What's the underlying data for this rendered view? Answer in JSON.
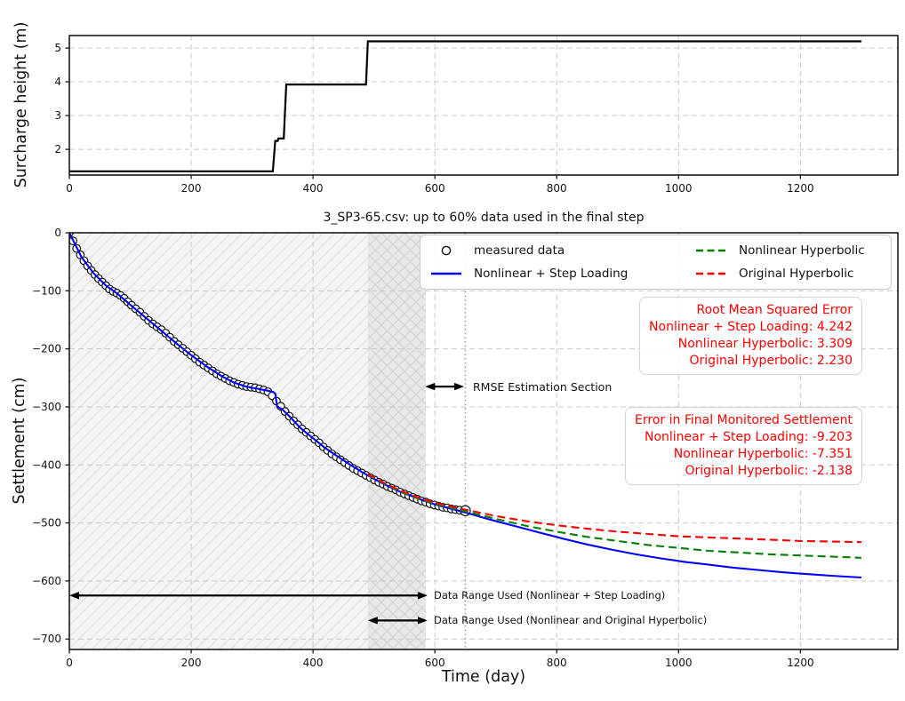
{
  "chart_data": [
    {
      "type": "line",
      "name": "surcharge-height-plot",
      "ylabel": "Surcharge height (m)",
      "xlim": [
        0,
        1360
      ],
      "ylim": [
        1.24,
        5.37
      ],
      "xticks": [
        0,
        200,
        400,
        600,
        800,
        1000,
        1200
      ],
      "xtick_labels": [
        "0",
        "200",
        "400",
        "600",
        "800",
        "1000",
        "1200"
      ],
      "yticks": [
        2,
        3,
        4,
        5
      ],
      "ytick_labels": [
        "2",
        "3",
        "4",
        "5"
      ],
      "grid": true,
      "series": [
        {
          "name": "surcharge height",
          "type": "line",
          "style": "solid",
          "color": "#000000",
          "points": [
            [
              0,
              1.35
            ],
            [
              334,
              1.35
            ],
            [
              338,
              2.25
            ],
            [
              342,
              2.25
            ],
            [
              343,
              2.32
            ],
            [
              352,
              2.32
            ],
            [
              356,
              3.92
            ],
            [
              487,
              3.92
            ],
            [
              490,
              5.2
            ],
            [
              1300,
              5.2
            ]
          ]
        }
      ]
    },
    {
      "type": "scatter",
      "name": "settlement-plot",
      "title": "3_SP3-65.csv: up to 60% data used in the final step",
      "xlabel": "Time (day)",
      "ylabel": "Settlement (cm)",
      "xlim": [
        0,
        1360
      ],
      "ylim": [
        -718,
        0
      ],
      "xticks": [
        0,
        200,
        400,
        600,
        800,
        1000,
        1200
      ],
      "xtick_labels": [
        "0",
        "200",
        "400",
        "600",
        "800",
        "1000",
        "1200"
      ],
      "yticks": [
        0,
        -100,
        -200,
        -300,
        -400,
        -500,
        -600,
        -700
      ],
      "ytick_labels": [
        "0",
        "−100",
        "−200",
        "−300",
        "−400",
        "−500",
        "−600",
        "−700"
      ],
      "grid": true,
      "regions": [
        {
          "name": "step-loading-data-range",
          "x0": 0,
          "x1": 490,
          "hatch": "diag",
          "bg": "#f4f4f4",
          "line": "#e2e2e2"
        },
        {
          "name": "hyperbolic-data-range",
          "x0": 490,
          "x1": 585,
          "hatch": "cross",
          "bg": "#e8e8e8",
          "line": "#d4d4d4"
        }
      ],
      "vline": {
        "name": "end-of-measured-data",
        "x": 650,
        "color": "#9a9a9a"
      },
      "series": [
        {
          "name": "measured data",
          "type": "scatter",
          "color": "#111111",
          "points": [
            [
              0,
              0
            ],
            [
              6,
              -14
            ],
            [
              12,
              -27
            ],
            [
              18,
              -38
            ],
            [
              24,
              -48
            ],
            [
              30,
              -57
            ],
            [
              36,
              -65
            ],
            [
              42,
              -72
            ],
            [
              48,
              -79
            ],
            [
              54,
              -85
            ],
            [
              60,
              -91
            ],
            [
              66,
              -97
            ],
            [
              72,
              -101
            ],
            [
              78,
              -104
            ],
            [
              84,
              -108
            ],
            [
              90,
              -113
            ],
            [
              96,
              -119
            ],
            [
              102,
              -125
            ],
            [
              109,
              -131
            ],
            [
              116,
              -137
            ],
            [
              123,
              -144
            ],
            [
              130,
              -151
            ],
            [
              137,
              -157
            ],
            [
              144,
              -162
            ],
            [
              151,
              -167
            ],
            [
              158,
              -173
            ],
            [
              165,
              -180
            ],
            [
              172,
              -187
            ],
            [
              179,
              -193
            ],
            [
              186,
              -199
            ],
            [
              193,
              -205
            ],
            [
              200,
              -211
            ],
            [
              207,
              -217
            ],
            [
              214,
              -223
            ],
            [
              221,
              -228
            ],
            [
              228,
              -233
            ],
            [
              235,
              -238
            ],
            [
              242,
              -243
            ],
            [
              249,
              -247
            ],
            [
              256,
              -251
            ],
            [
              263,
              -255
            ],
            [
              270,
              -258
            ],
            [
              277,
              -261
            ],
            [
              284,
              -263
            ],
            [
              291,
              -265
            ],
            [
              298,
              -266
            ],
            [
              305,
              -267
            ],
            [
              312,
              -269
            ],
            [
              319,
              -271
            ],
            [
              326,
              -274
            ],
            [
              333,
              -281
            ],
            [
              340,
              -290
            ],
            [
              347,
              -299
            ],
            [
              354,
              -308
            ],
            [
              361,
              -316
            ],
            [
              368,
              -324
            ],
            [
              375,
              -331
            ],
            [
              382,
              -338
            ],
            [
              389,
              -344
            ],
            [
              396,
              -350
            ],
            [
              403,
              -356
            ],
            [
              410,
              -362
            ],
            [
              417,
              -369
            ],
            [
              424,
              -375
            ],
            [
              431,
              -381
            ],
            [
              438,
              -386
            ],
            [
              445,
              -391
            ],
            [
              452,
              -396
            ],
            [
              459,
              -401
            ],
            [
              466,
              -406
            ],
            [
              473,
              -410
            ],
            [
              480,
              -414
            ],
            [
              487,
              -418
            ],
            [
              494,
              -422
            ],
            [
              501,
              -426
            ],
            [
              508,
              -430
            ],
            [
              515,
              -433
            ],
            [
              522,
              -437
            ],
            [
              529,
              -440
            ],
            [
              536,
              -443
            ],
            [
              543,
              -447
            ],
            [
              550,
              -450
            ],
            [
              557,
              -453
            ],
            [
              564,
              -456
            ],
            [
              571,
              -459
            ],
            [
              578,
              -462
            ],
            [
              585,
              -464
            ],
            [
              592,
              -467
            ],
            [
              599,
              -469
            ],
            [
              606,
              -471
            ],
            [
              613,
              -473
            ],
            [
              620,
              -474
            ],
            [
              627,
              -476
            ],
            [
              634,
              -477
            ],
            [
              641,
              -478
            ],
            [
              650,
              -479
            ]
          ]
        },
        {
          "name": "Nonlinear + Step Loading",
          "type": "line",
          "style": "solid",
          "color": "#0000ff",
          "points": [
            [
              0,
              0
            ],
            [
              20,
              -42
            ],
            [
              40,
              -70
            ],
            [
              60,
              -91
            ],
            [
              80,
              -106
            ],
            [
              100,
              -124
            ],
            [
              125,
              -146
            ],
            [
              150,
              -168
            ],
            [
              175,
              -190
            ],
            [
              200,
              -211
            ],
            [
              225,
              -230
            ],
            [
              250,
              -247
            ],
            [
              270,
              -258
            ],
            [
              290,
              -265
            ],
            [
              310,
              -269
            ],
            [
              325,
              -272
            ],
            [
              334,
              -274
            ],
            [
              338,
              -277
            ],
            [
              341,
              -299
            ],
            [
              350,
              -305
            ],
            [
              361,
              -316
            ],
            [
              380,
              -337
            ],
            [
              400,
              -354
            ],
            [
              420,
              -371
            ],
            [
              440,
              -385
            ],
            [
              460,
              -399
            ],
            [
              480,
              -412
            ],
            [
              500,
              -424
            ],
            [
              520,
              -435
            ],
            [
              540,
              -445
            ],
            [
              560,
              -453
            ],
            [
              580,
              -461
            ],
            [
              600,
              -468
            ],
            [
              625,
              -475
            ],
            [
              650,
              -482
            ],
            [
              690,
              -494
            ],
            [
              730,
              -505
            ],
            [
              770,
              -516
            ],
            [
              810,
              -527
            ],
            [
              850,
              -537
            ],
            [
              890,
              -546
            ],
            [
              930,
              -554
            ],
            [
              970,
              -561
            ],
            [
              1010,
              -567
            ],
            [
              1050,
              -572
            ],
            [
              1090,
              -577
            ],
            [
              1130,
              -581
            ],
            [
              1170,
              -585
            ],
            [
              1210,
              -588
            ],
            [
              1250,
              -591
            ],
            [
              1300,
              -594
            ]
          ]
        },
        {
          "name": "Nonlinear Hyperbolic",
          "type": "line",
          "style": "dashed",
          "color": "#008000",
          "points": [
            [
              490,
              -417
            ],
            [
              520,
              -434
            ],
            [
              550,
              -449
            ],
            [
              580,
              -461
            ],
            [
              610,
              -470
            ],
            [
              650,
              -480
            ],
            [
              700,
              -493
            ],
            [
              750,
              -505
            ],
            [
              800,
              -515
            ],
            [
              850,
              -524
            ],
            [
              900,
              -531
            ],
            [
              950,
              -538
            ],
            [
              1000,
              -543
            ],
            [
              1050,
              -548
            ],
            [
              1100,
              -551
            ],
            [
              1150,
              -554
            ],
            [
              1200,
              -556
            ],
            [
              1250,
              -558
            ],
            [
              1300,
              -560
            ]
          ]
        },
        {
          "name": "Original Hyperbolic",
          "type": "line",
          "style": "dashed",
          "color": "#ff0000",
          "points": [
            [
              490,
              -416
            ],
            [
              520,
              -433
            ],
            [
              550,
              -447
            ],
            [
              580,
              -459
            ],
            [
              610,
              -468
            ],
            [
              650,
              -477
            ],
            [
              700,
              -488
            ],
            [
              750,
              -497
            ],
            [
              800,
              -504
            ],
            [
              850,
              -510
            ],
            [
              900,
              -515
            ],
            [
              950,
              -519
            ],
            [
              1000,
              -523
            ],
            [
              1050,
              -525
            ],
            [
              1100,
              -527
            ],
            [
              1150,
              -529
            ],
            [
              1200,
              -531
            ],
            [
              1250,
              -532
            ],
            [
              1300,
              -533
            ]
          ]
        }
      ],
      "legend": {
        "items": [
          {
            "label": "measured data",
            "marker": "circle",
            "color": "#111111"
          },
          {
            "label": "Nonlinear + Step Loading",
            "marker": "solid-line",
            "color": "#0000ff"
          },
          {
            "label": "Nonlinear Hyperbolic",
            "marker": "dashed-line",
            "color": "#008000"
          },
          {
            "label": "Original Hyperbolic",
            "marker": "dashed-line",
            "color": "#ff0000"
          }
        ]
      },
      "stat_boxes": [
        {
          "name": "rmse",
          "color": "#ff0000",
          "lines": [
            "Root Mean Squared Error",
            "Nonlinear + Step Loading: 4.242",
            "Nonlinear Hyperbolic: 3.309",
            "Original Hyperbolic: 2.230"
          ]
        },
        {
          "name": "final-settlement-error",
          "color": "#ff0000",
          "lines": [
            "Error in Final Monitored Settlement",
            "Nonlinear + Step Loading: -9.203",
            "Nonlinear Hyperbolic: -7.351",
            "Original Hyperbolic: -2.138"
          ]
        }
      ],
      "annotations": [
        {
          "name": "rmse-section",
          "label": "RMSE Estimation Section",
          "arrow": {
            "x0": 584,
            "x1": 648,
            "y": -265
          }
        },
        {
          "name": "range-step-loading",
          "label": "Data Range Used (Nonlinear + Step Loading)",
          "arrow": {
            "x0": 0,
            "x1": 588,
            "y": -625
          }
        },
        {
          "name": "range-hyperbolic",
          "label": "Data Range Used (Nonlinear and Original Hyperbolic)",
          "arrow": {
            "x0": 490,
            "x1": 588,
            "y": -668
          }
        }
      ]
    }
  ]
}
